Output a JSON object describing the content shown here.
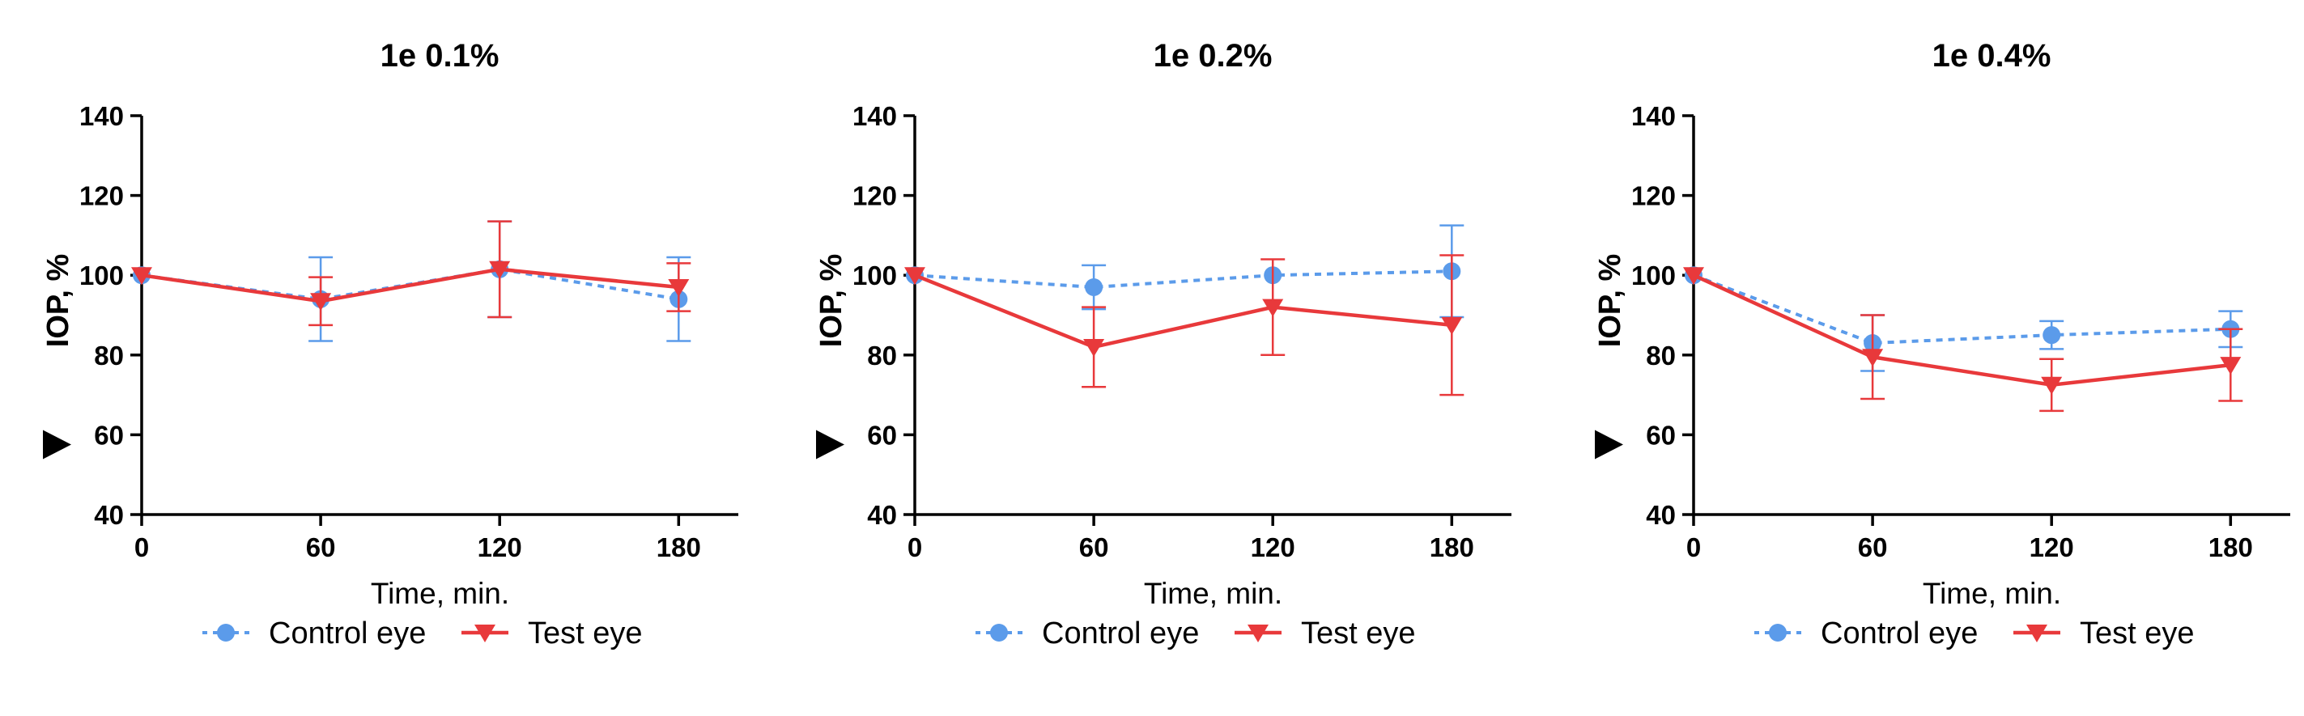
{
  "chart_data": [
    {
      "type": "line",
      "title": "1e 0.1%",
      "xlabel": "Time, min.",
      "ylabel": "IOP, %",
      "x": [
        0,
        60,
        120,
        180
      ],
      "xticks": [
        0,
        60,
        120,
        180
      ],
      "xlim": [
        0,
        200
      ],
      "ylim": [
        40,
        140
      ],
      "yticks": [
        40,
        60,
        80,
        100,
        120,
        140
      ],
      "legend": "bottom",
      "grid": false,
      "series": [
        {
          "name": "Control eye",
          "values": [
            100,
            94,
            101.5,
            94
          ],
          "errors": [
            1,
            10.5,
            12,
            10.5
          ],
          "color": "#5B9BEA",
          "marker": "circle",
          "line": "dotted"
        },
        {
          "name": "Test eye",
          "values": [
            100,
            93.5,
            101.5,
            97
          ],
          "errors": [
            1,
            6,
            12,
            6
          ],
          "color": "#E8393B",
          "marker": "triangle-down",
          "line": "solid"
        }
      ]
    },
    {
      "type": "line",
      "title": "1e 0.2%",
      "xlabel": "Time, min.",
      "ylabel": "IOP, %",
      "x": [
        0,
        60,
        120,
        180
      ],
      "xticks": [
        0,
        60,
        120,
        180
      ],
      "xlim": [
        0,
        200
      ],
      "ylim": [
        40,
        140
      ],
      "yticks": [
        40,
        60,
        80,
        100,
        120,
        140
      ],
      "legend": "bottom",
      "grid": false,
      "series": [
        {
          "name": "Control eye",
          "values": [
            100,
            97,
            100,
            101
          ],
          "errors": [
            1,
            5.5,
            1,
            11.5
          ],
          "color": "#5B9BEA",
          "marker": "circle",
          "line": "dotted"
        },
        {
          "name": "Test eye",
          "values": [
            100,
            82,
            92,
            87.5
          ],
          "errors": [
            1,
            10,
            12,
            17.5
          ],
          "color": "#E8393B",
          "marker": "triangle-down",
          "line": "solid"
        }
      ]
    },
    {
      "type": "line",
      "title": "1e 0.4%",
      "xlabel": "Time, min.",
      "ylabel": "IOP, %",
      "x": [
        0,
        60,
        120,
        180
      ],
      "xticks": [
        0,
        60,
        120,
        180
      ],
      "xlim": [
        0,
        200
      ],
      "ylim": [
        40,
        140
      ],
      "yticks": [
        40,
        60,
        80,
        100,
        120,
        140
      ],
      "legend": "bottom",
      "grid": false,
      "series": [
        {
          "name": "Control eye",
          "values": [
            100,
            83,
            85,
            86.5
          ],
          "errors": [
            1,
            7,
            3.5,
            4.5
          ],
          "color": "#5B9BEA",
          "marker": "circle",
          "line": "dotted"
        },
        {
          "name": "Test eye",
          "values": [
            100,
            79.5,
            72.5,
            77.5
          ],
          "errors": [
            1,
            10.5,
            6.5,
            9
          ],
          "color": "#E8393B",
          "marker": "triangle-down",
          "line": "solid"
        }
      ]
    }
  ]
}
